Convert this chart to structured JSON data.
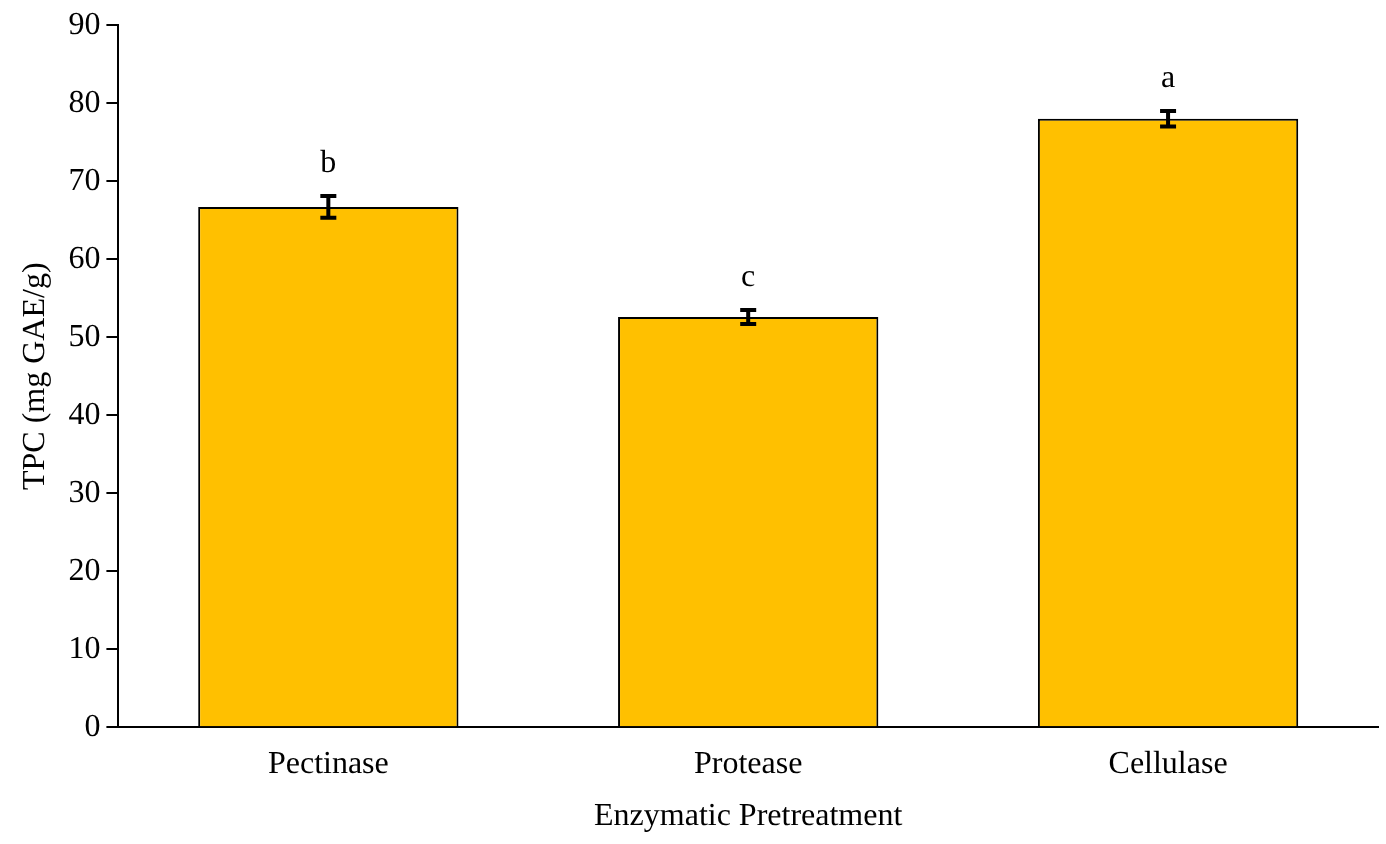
{
  "chart_data": {
    "type": "bar",
    "xlabel": "Enzymatic Pretreatment",
    "ylabel": "TPC (mg GAE/g)",
    "categories": [
      "Pectinase",
      "Protease",
      "Cellulase"
    ],
    "values": [
      66.7,
      52.6,
      78.0
    ],
    "color": "#ffc000",
    "errors": [
      1.4,
      0.9,
      1.0
    ],
    "ylim": [
      0,
      90
    ],
    "yticks": [
      0,
      10,
      20,
      30,
      40,
      50,
      60,
      70,
      80,
      90
    ],
    "grid": false,
    "annotations": [
      "b",
      "c",
      "a"
    ]
  }
}
